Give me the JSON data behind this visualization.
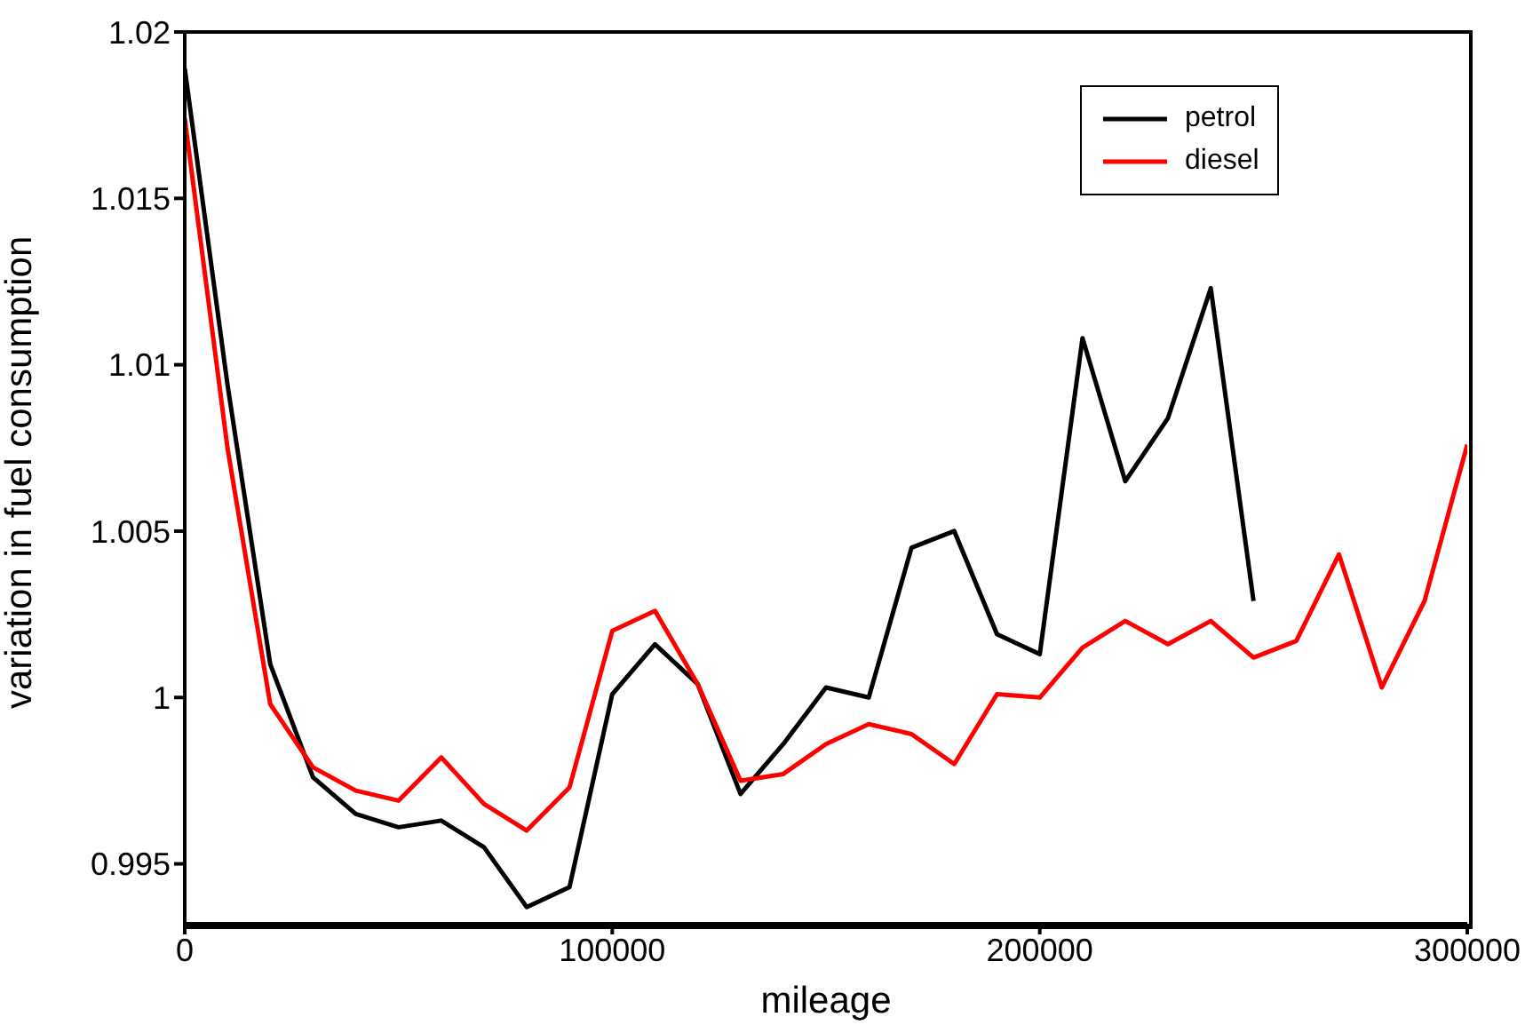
{
  "chart_data": {
    "type": "line",
    "xlabel": "mileage",
    "ylabel": "variation in fuel consumption",
    "x": [
      0,
      10000,
      20000,
      30000,
      40000,
      50000,
      60000,
      70000,
      80000,
      90000,
      100000,
      110000,
      120000,
      130000,
      140000,
      150000,
      160000,
      170000,
      180000,
      190000,
      200000,
      210000,
      220000,
      230000,
      240000,
      250000,
      260000,
      270000,
      280000,
      290000,
      300000
    ],
    "series": [
      {
        "name": "petrol",
        "color": "#000000",
        "values": [
          1.0189,
          1.0094,
          1.001,
          0.9976,
          0.9965,
          0.9961,
          0.9963,
          0.9955,
          0.9937,
          0.9943,
          1.0001,
          1.0016,
          1.0004,
          0.9971,
          0.9986,
          1.0003,
          1.0,
          1.0045,
          1.005,
          1.0019,
          1.0013,
          1.0108,
          1.0065,
          1.0084,
          1.0123,
          1.0029,
          null,
          null,
          null,
          null,
          null
        ]
      },
      {
        "name": "diesel",
        "color": "#ff0000",
        "values": [
          1.0174,
          1.0075,
          0.9998,
          0.9979,
          0.9972,
          0.9969,
          0.9982,
          0.9968,
          0.996,
          0.9973,
          1.002,
          1.0026,
          1.0004,
          0.9975,
          0.9977,
          0.9986,
          0.9992,
          0.9989,
          0.998,
          1.0001,
          1.0,
          1.0015,
          1.0023,
          1.0016,
          1.0023,
          1.0012,
          1.0017,
          1.0043,
          1.0003,
          1.0029,
          1.0076
        ]
      }
    ],
    "xlim": [
      0,
      300000
    ],
    "xticks": [
      0,
      100000,
      200000,
      300000
    ],
    "ylim": [
      0.9932,
      1.02
    ],
    "yticks": [
      0.995,
      1,
      1.005,
      1.01,
      1.015,
      1.02
    ],
    "grid": false,
    "legend": "top right",
    "marker": "none",
    "line_style": "solid"
  }
}
